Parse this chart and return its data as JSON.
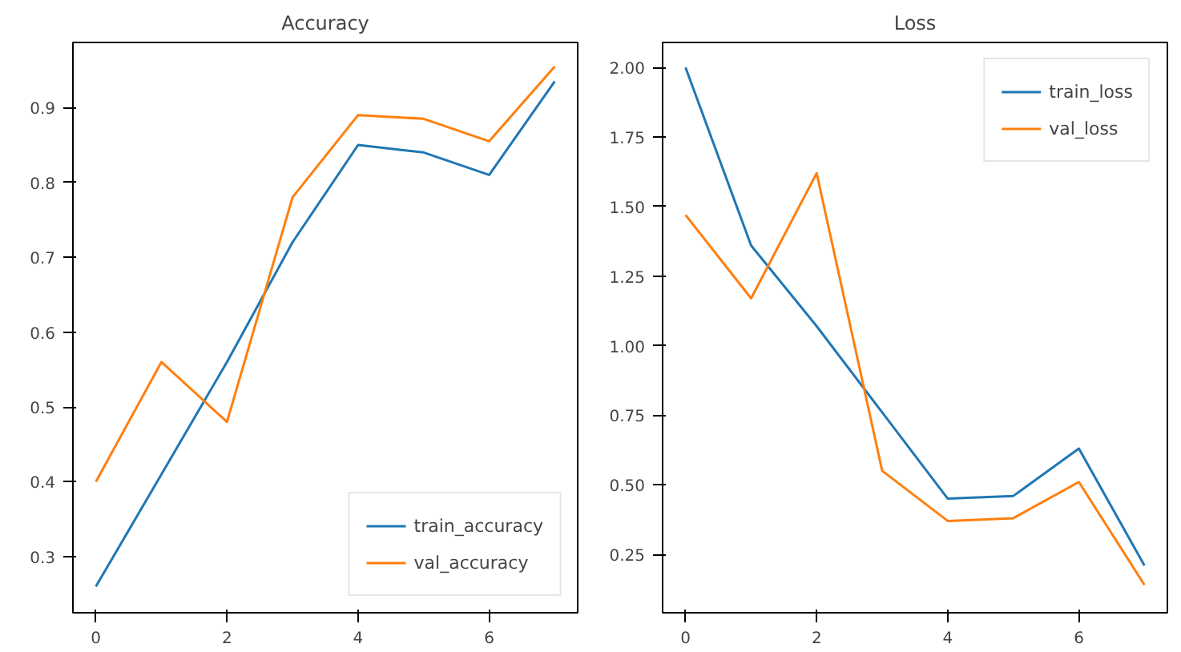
{
  "chart_data": [
    {
      "type": "line",
      "title": "Accuracy",
      "x": [
        0,
        1,
        2,
        3,
        4,
        5,
        6,
        7
      ],
      "xlim": [
        -0.35,
        7.35
      ],
      "xticks": [
        0,
        2,
        4,
        6
      ],
      "ylim": [
        0.225,
        0.987
      ],
      "yticks": [
        0.3,
        0.4,
        0.5,
        0.6,
        0.7,
        0.8,
        0.9
      ],
      "grid": false,
      "legend": "bottom right",
      "series": [
        {
          "name": "train_accuracy",
          "color": "#1f77b4",
          "values": [
            0.26,
            0.41,
            0.56,
            0.72,
            0.85,
            0.84,
            0.81,
            0.935
          ]
        },
        {
          "name": "val_accuracy",
          "color": "#ff7f0e",
          "values": [
            0.4,
            0.56,
            0.48,
            0.78,
            0.89,
            0.885,
            0.855,
            0.955
          ]
        }
      ]
    },
    {
      "type": "line",
      "title": "Loss",
      "x": [
        0,
        1,
        2,
        3,
        4,
        5,
        6,
        7
      ],
      "xlim": [
        -0.35,
        7.35
      ],
      "xticks": [
        0,
        2,
        4,
        6
      ],
      "ylim": [
        0.04,
        2.09
      ],
      "yticks": [
        {
          "value": 0.25,
          "label": "0.25"
        },
        {
          "value": 0.5,
          "label": "0.50"
        },
        {
          "value": 0.75,
          "label": "0.75"
        },
        {
          "value": 1.0,
          "label": "1.00"
        },
        {
          "value": 1.25,
          "label": "1.25"
        },
        {
          "value": 1.5,
          "label": "1.50"
        },
        {
          "value": 1.75,
          "label": "1.75"
        },
        {
          "value": 2.0,
          "label": "2.00"
        }
      ],
      "grid": false,
      "legend": "top right",
      "series": [
        {
          "name": "train_loss",
          "color": "#1f77b4",
          "values": [
            2.0,
            1.36,
            1.07,
            0.76,
            0.45,
            0.46,
            0.63,
            0.21
          ]
        },
        {
          "name": "val_loss",
          "color": "#ff7f0e",
          "values": [
            1.47,
            1.17,
            1.62,
            0.55,
            0.37,
            0.38,
            0.51,
            0.14
          ]
        }
      ]
    }
  ]
}
